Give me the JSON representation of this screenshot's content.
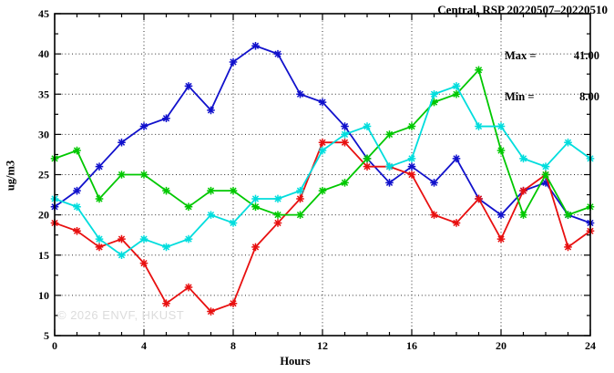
{
  "title": "Central, RSP 20220507–20220510",
  "annotation": {
    "max_label": "Max =",
    "max_value": "41.00",
    "min_label": "Min =",
    "min_value": "8.00"
  },
  "watermark": "© 2026 ENVF, HKUST",
  "chart_data": {
    "type": "line",
    "title": "Central, RSP 20220507–20220510",
    "xlabel": "Hours",
    "ylabel": "ug/m3",
    "xlim": [
      0,
      24
    ],
    "ylim": [
      5,
      45
    ],
    "x_major_ticks": [
      0,
      4,
      8,
      12,
      16,
      20,
      24
    ],
    "y_major_ticks": [
      5,
      10,
      15,
      20,
      25,
      30,
      35,
      40,
      45
    ],
    "x_minor_step": 1,
    "y_minor_step": 2.5,
    "x_grid": [
      4,
      8,
      12,
      16,
      20
    ],
    "y_grid": [
      10,
      15,
      20,
      25,
      30,
      35,
      40
    ],
    "grid": "dotted",
    "legend": "none",
    "stats": {
      "max": 41.0,
      "min": 8.0
    },
    "x": [
      0,
      1,
      2,
      3,
      4,
      5,
      6,
      7,
      8,
      9,
      10,
      11,
      12,
      13,
      14,
      15,
      16,
      17,
      18,
      19,
      20,
      21,
      22,
      23,
      24
    ],
    "series": [
      {
        "name": "series-blue",
        "color": "#1111cc",
        "values": [
          21,
          23,
          26,
          29,
          31,
          32,
          36,
          33,
          39,
          41,
          40,
          35,
          34,
          31,
          27,
          24,
          26,
          24,
          27,
          22,
          20,
          23,
          24,
          20,
          19
        ]
      },
      {
        "name": "series-red",
        "color": "#e81010",
        "values": [
          19,
          18,
          16,
          17,
          14,
          9,
          11,
          8,
          9,
          16,
          19,
          22,
          29,
          29,
          26,
          26,
          25,
          20,
          19,
          22,
          17,
          23,
          25,
          16,
          18
        ]
      },
      {
        "name": "series-green",
        "color": "#00c800",
        "values": [
          27,
          28,
          22,
          25,
          25,
          23,
          21,
          23,
          23,
          21,
          20,
          20,
          23,
          24,
          27,
          30,
          31,
          34,
          35,
          38,
          28,
          20,
          25,
          20,
          21
        ]
      },
      {
        "name": "series-cyan",
        "color": "#00dddd",
        "values": [
          22,
          21,
          17,
          15,
          17,
          16,
          17,
          20,
          19,
          22,
          22,
          23,
          28,
          30,
          31,
          26,
          27,
          35,
          36,
          31,
          31,
          27,
          26,
          29,
          27
        ]
      }
    ]
  }
}
